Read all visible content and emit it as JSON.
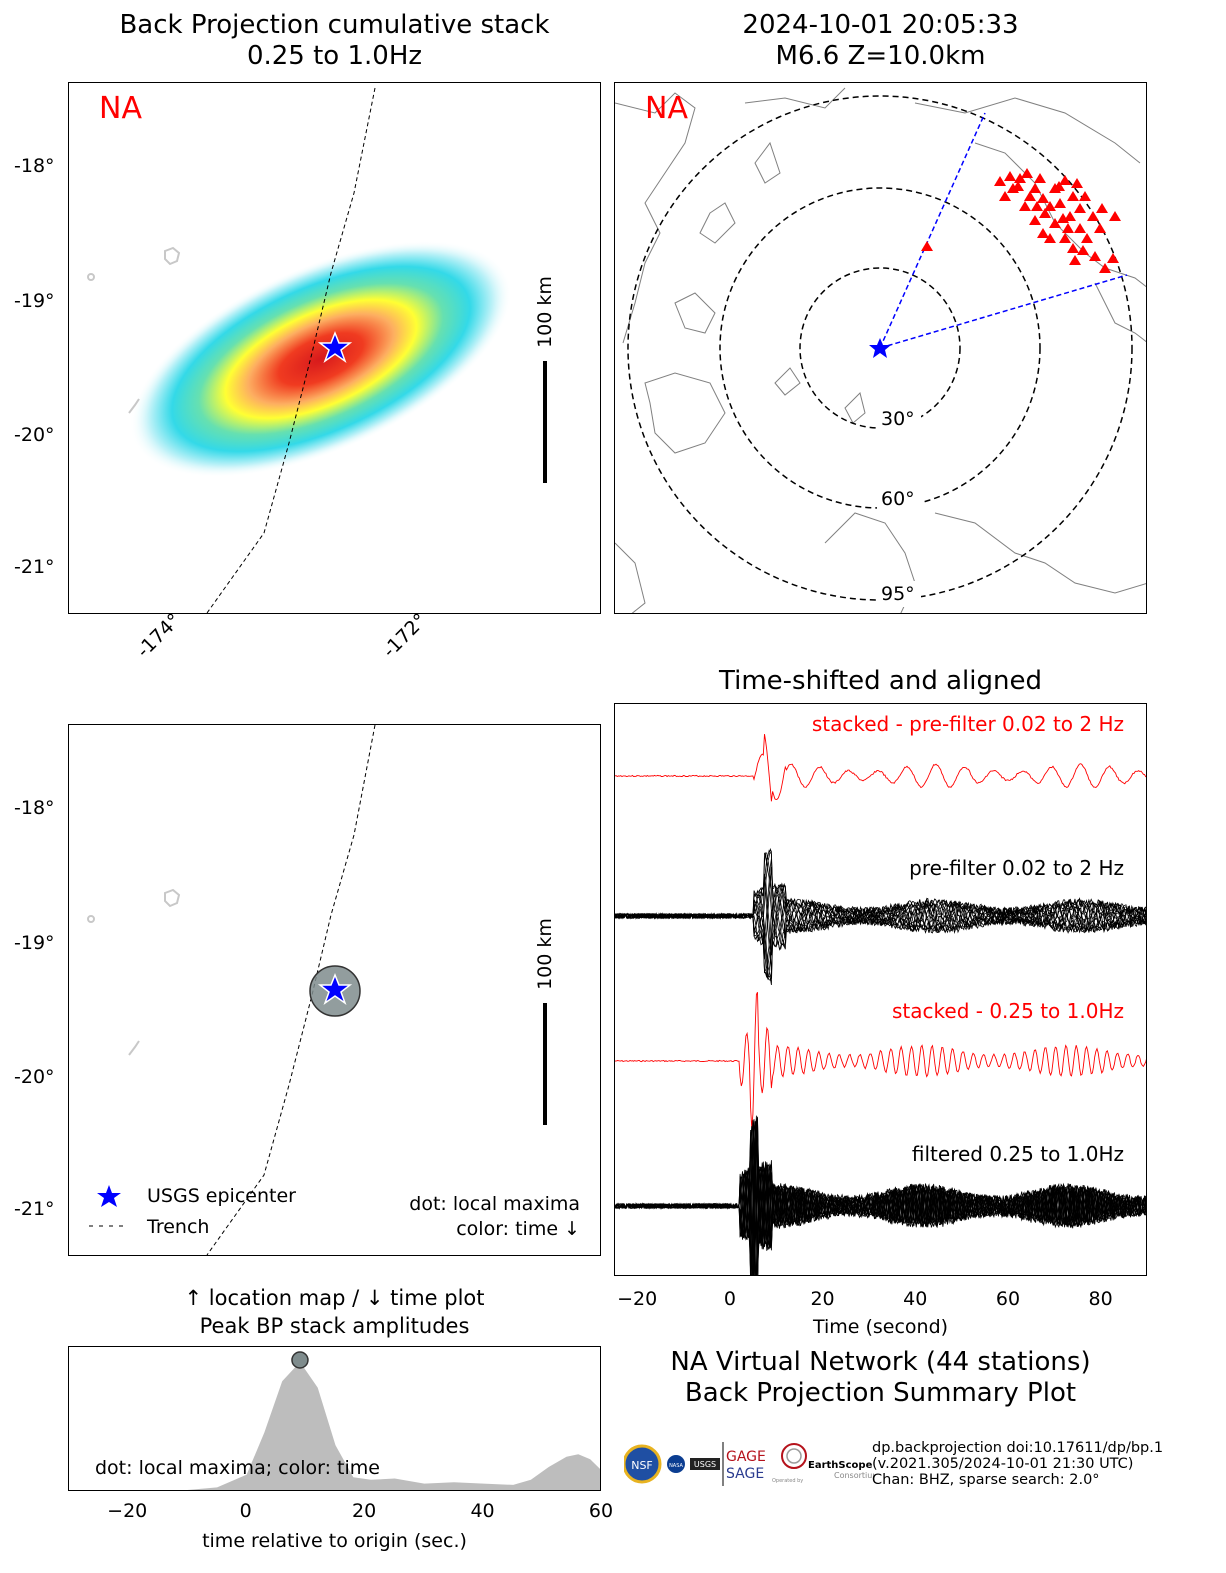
{
  "titles": {
    "bp_stack": [
      "Back Projection cumulative stack",
      "0.25 to 1.0Hz"
    ],
    "event": [
      "2024-10-01 20:05:33",
      "M6.6 Z=10.0km"
    ],
    "aligned": "Time-shifted and aligned",
    "peak": [
      "↑ location map / ↓ time plot",
      "Peak BP stack amplitudes"
    ],
    "summary": [
      "NA Virtual Network (44 stations)",
      "Back Projection Summary Plot"
    ]
  },
  "network_label": "NA",
  "map_ticks": {
    "lat": [
      "-18°",
      "-19°",
      "-20°",
      "-21°"
    ],
    "lon": [
      "-174°",
      "-172°"
    ]
  },
  "scale_bar": "100 km",
  "distance_rings": [
    "30°",
    "60°",
    "95°"
  ],
  "legend": {
    "epicenter": "USGS epicenter",
    "trench": "Trench",
    "note1": "dot: local maxima",
    "note2": "color: time ↓"
  },
  "trace_labels": {
    "stacked_raw": "stacked - pre-filter 0.02 to 2 Hz",
    "raw": "pre-filter 0.02 to 2 Hz",
    "stacked_filt": "stacked - 0.25 to 1.0Hz",
    "filtered": "filtered 0.25 to 1.0Hz"
  },
  "aligned_axis": {
    "xlabel": "Time (second)",
    "ticks": [
      "−20",
      "0",
      "20",
      "40",
      "60",
      "80"
    ]
  },
  "peak_axis": {
    "xlabel": "time relative to origin (sec.)",
    "ticks": [
      "−20",
      "0",
      "20",
      "40",
      "60"
    ],
    "note": "dot: local maxima; color: time"
  },
  "logos": {
    "gage": "GAGE",
    "sage": "SAGE",
    "earthscope": "EarthScope",
    "consortium": "Consortium",
    "operated": "Operated by",
    "nsf": "NSF",
    "nasa": "NASA",
    "usgs": "USGS"
  },
  "footer": [
    "dp.backprojection doi:10.17611/dp/bp.1",
    "(v.2021.305/2024-10-01 21:30 UTC)",
    "Chan: BHZ, sparse search: 2.0°"
  ],
  "colors": {
    "network": "#ff0000",
    "epicenter": "#0000ff",
    "stack_trace": "#ff0000",
    "trace": "#000000",
    "peak_fill": "#bdbdbd",
    "dot": "#7f8c8d"
  },
  "chart_data": [
    {
      "type": "area",
      "x": [
        -30,
        -10,
        -5,
        0,
        3,
        6,
        9,
        12,
        15,
        18,
        21,
        25,
        30,
        35,
        40,
        45,
        48,
        51,
        54,
        56,
        58,
        60
      ],
      "values": [
        0,
        0,
        0.02,
        0.12,
        0.45,
        0.85,
        1.0,
        0.8,
        0.35,
        0.1,
        0.08,
        0.09,
        0.05,
        0.06,
        0.05,
        0.04,
        0.08,
        0.18,
        0.26,
        0.28,
        0.24,
        0.15
      ],
      "xlabel": "time relative to origin (sec.)",
      "xlim": [
        -30,
        60
      ],
      "peak": {
        "x": 9,
        "y": 1.0
      }
    },
    {
      "type": "line",
      "xlabel": "Time (second)",
      "xlim": [
        -25,
        90
      ],
      "series": [
        {
          "name": "stacked - pre-filter 0.02 to 2 Hz",
          "onset": 5,
          "freq": 0.16,
          "amp": 0.45
        },
        {
          "name": "pre-filter 0.02 to 2 Hz",
          "onset": 5,
          "freq": 0.16,
          "amp": 0.55
        },
        {
          "name": "stacked - 0.25 to 1.0Hz",
          "onset": 2,
          "freq": 0.45,
          "amp": 0.6
        },
        {
          "name": "filtered 0.25 to 1.0Hz",
          "onset": 2,
          "freq": 0.5,
          "amp": 0.75
        }
      ]
    }
  ]
}
